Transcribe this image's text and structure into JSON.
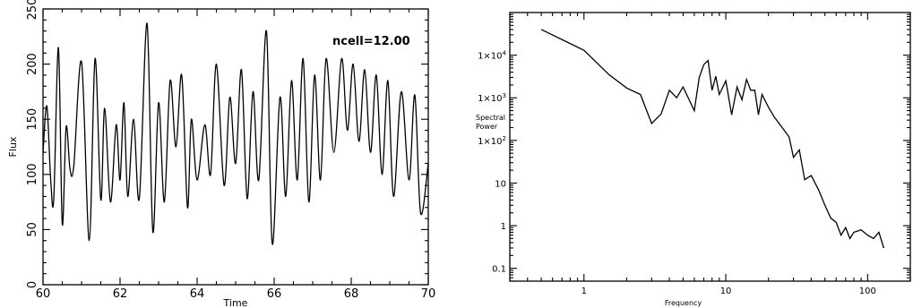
{
  "chart_data": [
    {
      "type": "line",
      "title": "",
      "xlabel": "Time",
      "ylabel": "Flux",
      "xlim": [
        60,
        70
      ],
      "ylim": [
        0,
        250
      ],
      "xticks": [
        "60",
        "62",
        "64",
        "66",
        "68",
        "70"
      ],
      "yticks": [
        "0",
        "50",
        "100",
        "150",
        "200",
        "250"
      ],
      "annotation": "ncell=12.00",
      "grid": false,
      "series": [
        {
          "x": [
            60.0,
            60.1,
            60.2,
            60.28,
            60.4,
            60.5,
            60.6,
            60.7,
            60.8,
            61.0,
            61.2,
            61.35,
            61.5,
            61.6,
            61.75,
            61.9,
            62.0,
            62.1,
            62.2,
            62.35,
            62.5,
            62.7,
            62.85,
            63.0,
            63.15,
            63.3,
            63.45,
            63.6,
            63.75,
            63.85,
            64.0,
            64.2,
            64.35,
            64.5,
            64.7,
            64.85,
            65.0,
            65.15,
            65.3,
            65.45,
            65.6,
            65.8,
            65.95,
            66.15,
            66.3,
            66.45,
            66.6,
            66.75,
            66.9,
            67.05,
            67.2,
            67.35,
            67.55,
            67.75,
            67.9,
            68.05,
            68.2,
            68.35,
            68.5,
            68.65,
            68.8,
            68.95,
            69.1,
            69.3,
            69.5,
            69.65,
            69.8,
            70.0
          ],
          "y": [
            120,
            162,
            95,
            78,
            215,
            55,
            143,
            105,
            108,
            202,
            40,
            205,
            77,
            160,
            75,
            145,
            95,
            165,
            80,
            150,
            78,
            237,
            48,
            165,
            75,
            185,
            125,
            190,
            70,
            150,
            95,
            145,
            100,
            200,
            90,
            170,
            110,
            195,
            78,
            175,
            95,
            230,
            37,
            170,
            80,
            185,
            95,
            205,
            75,
            190,
            95,
            205,
            120,
            205,
            140,
            200,
            130,
            195,
            120,
            190,
            100,
            185,
            80,
            175,
            95,
            172,
            65,
            110
          ]
        }
      ]
    },
    {
      "type": "line",
      "title": "",
      "xlabel": "Frequency",
      "ylabel": "Spectral Power",
      "x_scale": "log",
      "y_scale": "log",
      "xlim": [
        0.3,
        200
      ],
      "ylim": [
        0.05,
        100000
      ],
      "xticks": [
        "1",
        "10",
        "100"
      ],
      "yticks": [
        "0.1",
        "1",
        "10",
        "1×10^2",
        "1×10^3",
        "1×10^4"
      ],
      "grid": false,
      "series": [
        {
          "x": [
            0.5,
            1,
            1.5,
            2,
            2.5,
            3,
            3.5,
            4,
            4.5,
            5,
            6,
            6.5,
            7,
            7.5,
            8,
            8.5,
            9,
            10,
            11,
            12,
            13,
            14,
            15,
            16,
            17,
            18,
            20,
            22,
            25,
            28,
            30,
            33,
            36,
            40,
            45,
            50,
            55,
            60,
            65,
            70,
            75,
            80,
            90,
            100,
            110,
            120,
            130
          ],
          "y": [
            40000,
            13000,
            3500,
            1700,
            1200,
            250,
            420,
            1500,
            1000,
            1800,
            500,
            3000,
            6000,
            7500,
            1500,
            3200,
            1200,
            2500,
            400,
            1800,
            900,
            2700,
            1500,
            1500,
            400,
            1200,
            600,
            350,
            200,
            120,
            40,
            60,
            12,
            15,
            7,
            3,
            1.5,
            1.2,
            0.6,
            0.9,
            0.5,
            0.7,
            0.8,
            0.6,
            0.5,
            0.7,
            0.3
          ]
        }
      ]
    }
  ]
}
